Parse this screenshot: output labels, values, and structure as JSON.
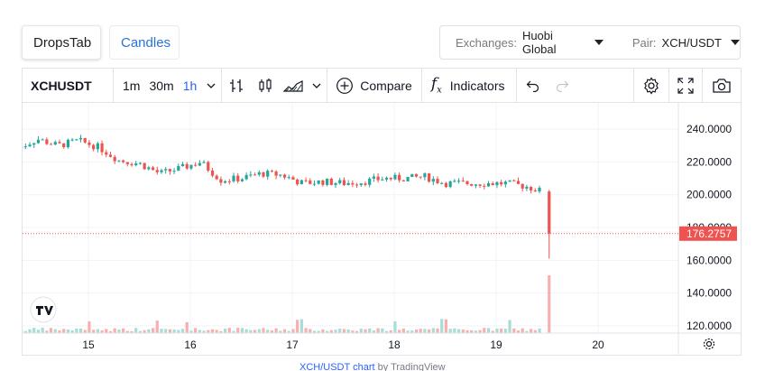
{
  "tabs": {
    "dropstab": "DropsTab",
    "candles": "Candles"
  },
  "selectors": {
    "exchanges_label": "Exchanges:",
    "exchanges_value": "Huobi Global",
    "pair_label": "Pair:",
    "pair_value": "XCH/USDT"
  },
  "toolbar": {
    "symbol": "XCHUSDT",
    "intervals": [
      "1m",
      "30m",
      "1h"
    ],
    "active_interval": "1h",
    "compare_label": "Compare",
    "indicators_label": "Indicators",
    "icons": [
      "chevron-down-icon",
      "bar-chart-icon",
      "candles-icon",
      "area-chart-icon",
      "plus-circle-icon",
      "fx-icon",
      "undo-icon",
      "redo-icon",
      "settings-icon",
      "fullscreen-icon",
      "camera-icon"
    ]
  },
  "chart_data": {
    "type": "candlestick",
    "price_axis": [
      "240.0000",
      "220.0000",
      "200.0000",
      "180.0000",
      "160.0000",
      "140.0000",
      "120.0000"
    ],
    "ylim": [
      115,
      250
    ],
    "time_axis": [
      "15",
      "16",
      "17",
      "18",
      "19",
      "20"
    ],
    "last_price": "176.2757",
    "colors": {
      "up": "#26a69a",
      "down": "#ef5350",
      "volume_up": "#a9dcd6",
      "volume_down": "#f5b1b0",
      "grid": "#f0f3fa"
    },
    "close_path": [
      [
        14.3,
        228
      ],
      [
        14.5,
        234
      ],
      [
        14.7,
        230
      ],
      [
        14.9,
        233
      ],
      [
        15.1,
        229
      ],
      [
        15.3,
        221
      ],
      [
        15.5,
        219
      ],
      [
        15.7,
        213
      ],
      [
        15.9,
        216
      ],
      [
        16.1,
        220
      ],
      [
        16.3,
        209
      ],
      [
        16.5,
        210
      ],
      [
        16.7,
        213
      ],
      [
        16.9,
        212
      ],
      [
        17.1,
        207
      ],
      [
        17.3,
        208
      ],
      [
        17.5,
        207
      ],
      [
        17.7,
        208
      ],
      [
        17.9,
        210
      ],
      [
        18.1,
        210
      ],
      [
        18.3,
        211
      ],
      [
        18.5,
        207
      ],
      [
        18.7,
        207
      ],
      [
        18.9,
        207
      ],
      [
        19.1,
        207
      ],
      [
        19.3,
        205
      ],
      [
        19.45,
        202
      ],
      [
        19.5,
        176.3
      ]
    ],
    "final_candle": {
      "open": 202,
      "high": 203,
      "low": 161,
      "close": 176.3
    }
  },
  "footer": {
    "link_text": "XCH/USDT chart",
    "by_text": "by TradingView"
  }
}
